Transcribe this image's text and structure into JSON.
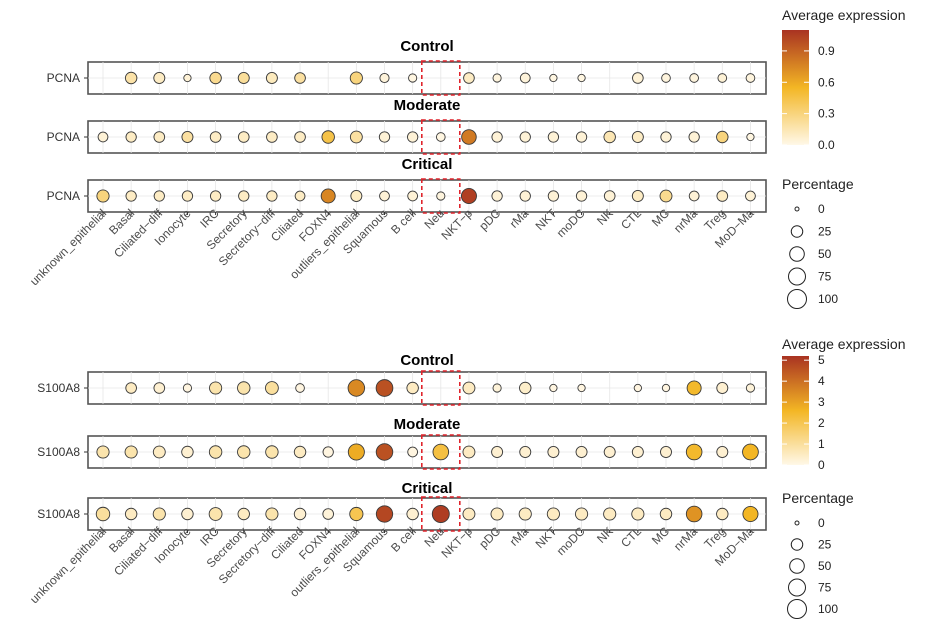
{
  "chart_data": [
    {
      "type": "dot",
      "gene": "PCNA",
      "categories": [
        "unknown_epithelial",
        "Basal",
        "Ciliated−diff",
        "Ionocyte",
        "IRC",
        "Secretory",
        "Secretory−diff",
        "Ciliated",
        "FOXN4",
        "outliers_epithelial",
        "Squamous",
        "B cell",
        "Neu",
        "NKT−p",
        "pDC",
        "rMa",
        "NKT",
        "moDC",
        "NK",
        "CTL",
        "MC",
        "nrMa",
        "Treg",
        "MoD−Ma"
      ],
      "highlight_category": "Neu",
      "panels": [
        {
          "title": "Control",
          "expression": [
            null,
            0.18,
            0.1,
            0.05,
            0.25,
            0.22,
            0.12,
            0.2,
            null,
            0.3,
            0.04,
            0.02,
            null,
            0.1,
            0.03,
            0.04,
            0.02,
            0.02,
            null,
            0.05,
            0.03,
            0.03,
            0.05,
            0.03
          ],
          "percentage": [
            null,
            25,
            22,
            5,
            25,
            22,
            22,
            20,
            null,
            30,
            12,
            8,
            null,
            20,
            8,
            15,
            5,
            5,
            null,
            20,
            10,
            10,
            10,
            10
          ]
        },
        {
          "title": "Moderate",
          "expression": [
            0.05,
            0.1,
            0.1,
            0.2,
            0.1,
            0.1,
            0.1,
            0.1,
            0.45,
            0.2,
            0.05,
            0.05,
            0.02,
            0.8,
            0.05,
            0.05,
            0.05,
            0.05,
            0.15,
            0.1,
            0.05,
            0.05,
            0.3,
            0.02
          ],
          "percentage": [
            15,
            18,
            20,
            22,
            20,
            20,
            20,
            20,
            32,
            28,
            18,
            18,
            10,
            50,
            18,
            18,
            18,
            18,
            25,
            22,
            18,
            18,
            25,
            5
          ]
        },
        {
          "title": "Critical",
          "expression": [
            0.3,
            0.1,
            0.1,
            0.1,
            0.1,
            0.1,
            0.1,
            0.1,
            0.75,
            0.1,
            0.05,
            0.05,
            0.03,
            1.05,
            0.05,
            0.05,
            0.05,
            0.05,
            0.05,
            0.1,
            0.25,
            0.05,
            0.1,
            0.05
          ],
          "percentage": [
            30,
            18,
            18,
            18,
            18,
            18,
            18,
            15,
            45,
            22,
            15,
            15,
            8,
            55,
            18,
            18,
            18,
            18,
            20,
            22,
            28,
            15,
            20,
            15
          ]
        }
      ],
      "color_legend": {
        "title": "Average expression",
        "ticks": [
          "0.0",
          "0.3",
          "0.6",
          "0.9"
        ],
        "tick_values": [
          0,
          0.3,
          0.6,
          0.9
        ],
        "min": 0,
        "max": 1.1
      },
      "size_legend": {
        "title": "Percentage",
        "ticks": [
          "0",
          "25",
          "50",
          "75",
          "100"
        ],
        "tick_values": [
          0,
          25,
          50,
          75,
          100
        ]
      }
    },
    {
      "type": "dot",
      "gene": "S100A8",
      "categories": [
        "unknown_epithelial",
        "Basal",
        "Ciliated−diff",
        "Ionocyte",
        "IRC",
        "Secretory",
        "Secretory−diff",
        "Ciliated",
        "FOXN4",
        "outliers_epithelial",
        "Squamous",
        "B cell",
        "Neu",
        "NKT−p",
        "pDC",
        "rMa",
        "NKT",
        "moDC",
        "NK",
        "CTL",
        "MC",
        "nrMa",
        "Treg",
        "MoD−Ma"
      ],
      "highlight_category": "Neu",
      "panels": [
        {
          "title": "Control",
          "expression": [
            null,
            0.5,
            0.3,
            0.1,
            0.8,
            0.8,
            1.0,
            0.1,
            null,
            3.5,
            4.6,
            0.5,
            null,
            0.5,
            0.2,
            0.4,
            0.1,
            0.1,
            null,
            0.1,
            0.1,
            2.5,
            0.3,
            0.2
          ],
          "percentage": [
            null,
            20,
            20,
            8,
            30,
            32,
            35,
            10,
            null,
            70,
            72,
            25,
            null,
            28,
            8,
            25,
            5,
            5,
            null,
            5,
            5,
            45,
            22,
            8
          ]
        },
        {
          "title": "Moderate",
          "expression": [
            0.8,
            0.8,
            0.5,
            0.3,
            0.8,
            0.8,
            0.8,
            0.5,
            0.1,
            2.8,
            4.6,
            0.1,
            2.2,
            0.5,
            0.3,
            0.3,
            0.3,
            0.3,
            0.3,
            0.3,
            0.3,
            2.5,
            0.3,
            2.6
          ],
          "percentage": [
            30,
            30,
            28,
            25,
            32,
            32,
            32,
            25,
            18,
            65,
            70,
            15,
            60,
            28,
            22,
            22,
            22,
            22,
            22,
            22,
            22,
            60,
            22,
            62
          ]
        },
        {
          "title": "Critical",
          "expression": [
            1.0,
            0.5,
            0.8,
            0.3,
            0.8,
            0.5,
            0.8,
            0.3,
            0.2,
            2.0,
            4.8,
            0.3,
            5.0,
            0.5,
            0.5,
            0.5,
            0.5,
            0.5,
            0.5,
            0.5,
            0.5,
            3.3,
            0.5,
            2.6
          ],
          "percentage": [
            40,
            25,
            30,
            25,
            35,
            25,
            30,
            25,
            20,
            38,
            68,
            25,
            75,
            28,
            30,
            30,
            30,
            30,
            30,
            30,
            25,
            60,
            25,
            55
          ]
        }
      ],
      "color_legend": {
        "title": "Average expression",
        "ticks": [
          "0",
          "1",
          "2",
          "3",
          "4",
          "5"
        ],
        "tick_values": [
          0,
          1,
          2,
          3,
          4,
          5
        ],
        "min": 0,
        "max": 5.2
      },
      "size_legend": {
        "title": "Percentage",
        "ticks": [
          "0",
          "25",
          "50",
          "75",
          "100"
        ],
        "tick_values": [
          0,
          25,
          50,
          75,
          100
        ]
      }
    }
  ],
  "colors": {
    "low": "#fff8e8",
    "mid": "#f3b624",
    "high": "#a93322",
    "highlight_box": "#e0242c",
    "grid": "#e6e6e6",
    "frame": "#555555"
  }
}
